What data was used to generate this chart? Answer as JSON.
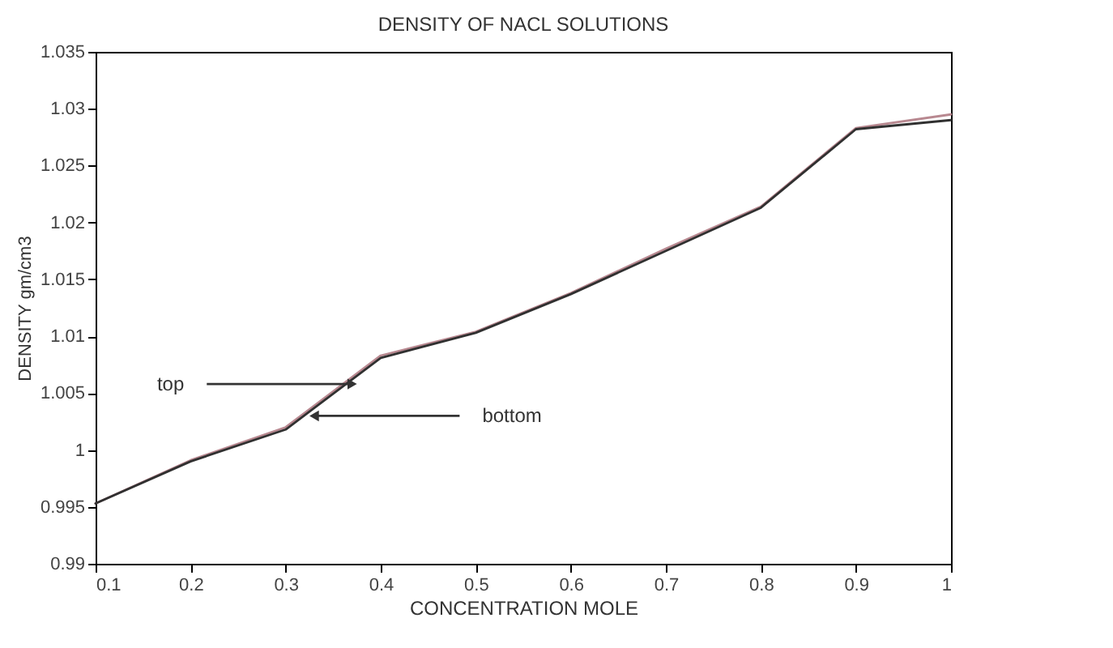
{
  "chart_data": {
    "type": "line",
    "title": "DENSITY OF NACL SOLUTIONS",
    "xlabel": "CONCENTRATION MOLE",
    "ylabel": "DENSITY gm/cm3",
    "x": [
      0.1,
      0.2,
      0.3,
      0.4,
      0.5,
      0.6,
      0.7,
      0.8,
      0.9,
      1.0
    ],
    "series": [
      {
        "color": "#b88890",
        "values": [
          0.9953,
          0.9991,
          1.002,
          1.0083,
          1.0104,
          1.0138,
          1.0177,
          1.0214,
          1.0283,
          1.0295
        ]
      },
      {
        "color": "#303030",
        "values": [
          0.9953,
          0.999,
          1.0018,
          1.0081,
          1.0103,
          1.0137,
          1.0175,
          1.0213,
          1.0282,
          1.029
        ]
      }
    ],
    "annotations": [
      {
        "text": "top",
        "x": 0.37,
        "y": 1.0058
      },
      {
        "text": "bottom",
        "x": 0.33,
        "y": 1.003
      }
    ],
    "xlim": [
      0.1,
      1.0
    ],
    "xticks": [
      0.1,
      0.2,
      0.3,
      0.4,
      0.5,
      0.6,
      0.7,
      0.8,
      0.9,
      1
    ],
    "ylim": [
      0.99,
      1.035
    ],
    "yticks": [
      0.99,
      0.995,
      1,
      1.005,
      1.01,
      1.015,
      1.02,
      1.025,
      1.03,
      1.035
    ],
    "grid": false,
    "legend": false,
    "marker": "none",
    "line_style": "solid"
  }
}
